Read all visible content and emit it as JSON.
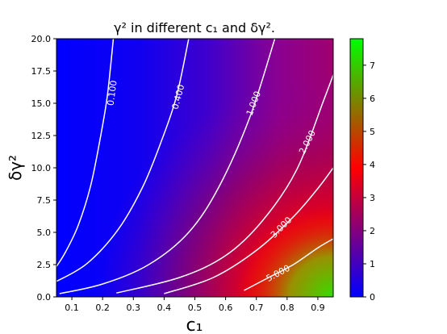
{
  "chart_data": {
    "type": "heatmap",
    "title": "γ² in different c₁ and δγ².",
    "xlabel": "c₁",
    "ylabel": "δγ²",
    "xlim": [
      0.05,
      0.95
    ],
    "ylim": [
      0.0,
      20.0
    ],
    "x_ticks": [
      "0.1",
      "0.2",
      "0.3",
      "0.4",
      "0.5",
      "0.6",
      "0.7",
      "0.8",
      "0.9"
    ],
    "x_tick_values": [
      0.1,
      0.2,
      0.3,
      0.4,
      0.5,
      0.6,
      0.7,
      0.8,
      0.9
    ],
    "y_ticks": [
      "0.0",
      "2.5",
      "5.0",
      "7.5",
      "10.0",
      "12.5",
      "15.0",
      "17.5",
      "20.0"
    ],
    "y_tick_values": [
      0.0,
      2.5,
      5.0,
      7.5,
      10.0,
      12.5,
      15.0,
      17.5,
      20.0
    ],
    "colorbar": {
      "range": [
        0,
        7.8
      ],
      "ticks": [
        "0",
        "1",
        "2",
        "3",
        "4",
        "5",
        "6",
        "7"
      ],
      "tick_values": [
        0,
        1,
        2,
        3,
        4,
        5,
        6,
        7
      ],
      "colors": [
        "#0000ff",
        "#ff0000",
        "#00ff00"
      ]
    },
    "contours": [
      {
        "level": 0.1,
        "label": "0.100",
        "label_at": [
          0.23,
          15.8
        ],
        "points": [
          [
            0.05,
            2.35
          ],
          [
            0.08,
            3.5
          ],
          [
            0.12,
            5.5
          ],
          [
            0.16,
            8.5
          ],
          [
            0.19,
            12.0
          ],
          [
            0.215,
            15.5
          ],
          [
            0.235,
            20.0
          ]
        ]
      },
      {
        "level": 0.4,
        "label": "0.400",
        "label_at": [
          0.445,
          15.5
        ],
        "points": [
          [
            0.05,
            1.2
          ],
          [
            0.15,
            2.6
          ],
          [
            0.25,
            5.2
          ],
          [
            0.33,
            8.5
          ],
          [
            0.39,
            12.0
          ],
          [
            0.44,
            15.5
          ],
          [
            0.48,
            20.0
          ]
        ]
      },
      {
        "level": 1.0,
        "label": "1.000",
        "label_at": [
          0.69,
          15.0
        ],
        "points": [
          [
            0.06,
            0.25
          ],
          [
            0.2,
            1.0
          ],
          [
            0.35,
            2.5
          ],
          [
            0.48,
            5.0
          ],
          [
            0.58,
            8.6
          ],
          [
            0.68,
            14.0
          ],
          [
            0.76,
            20.0
          ]
        ]
      },
      {
        "level": 2.0,
        "label": "2.000",
        "label_at": [
          0.865,
          12.0
        ],
        "points": [
          [
            0.245,
            0.3
          ],
          [
            0.45,
            1.5
          ],
          [
            0.6,
            3.2
          ],
          [
            0.72,
            5.9
          ],
          [
            0.83,
            9.8
          ],
          [
            0.92,
            15.3
          ],
          [
            0.95,
            17.2
          ]
        ]
      },
      {
        "level": 3.0,
        "label": "3.000",
        "label_at": [
          0.78,
          5.4
        ],
        "points": [
          [
            0.4,
            0.25
          ],
          [
            0.56,
            1.5
          ],
          [
            0.7,
            3.6
          ],
          [
            0.82,
            6.2
          ],
          [
            0.9,
            8.4
          ],
          [
            0.95,
            10.0
          ]
        ]
      },
      {
        "level": 5.0,
        "label": "5.000",
        "label_at": [
          0.77,
          1.85
        ],
        "points": [
          [
            0.66,
            0.5
          ],
          [
            0.74,
            1.5
          ],
          [
            0.82,
            2.5
          ],
          [
            0.9,
            3.8
          ],
          [
            0.95,
            4.5
          ]
        ]
      }
    ]
  }
}
